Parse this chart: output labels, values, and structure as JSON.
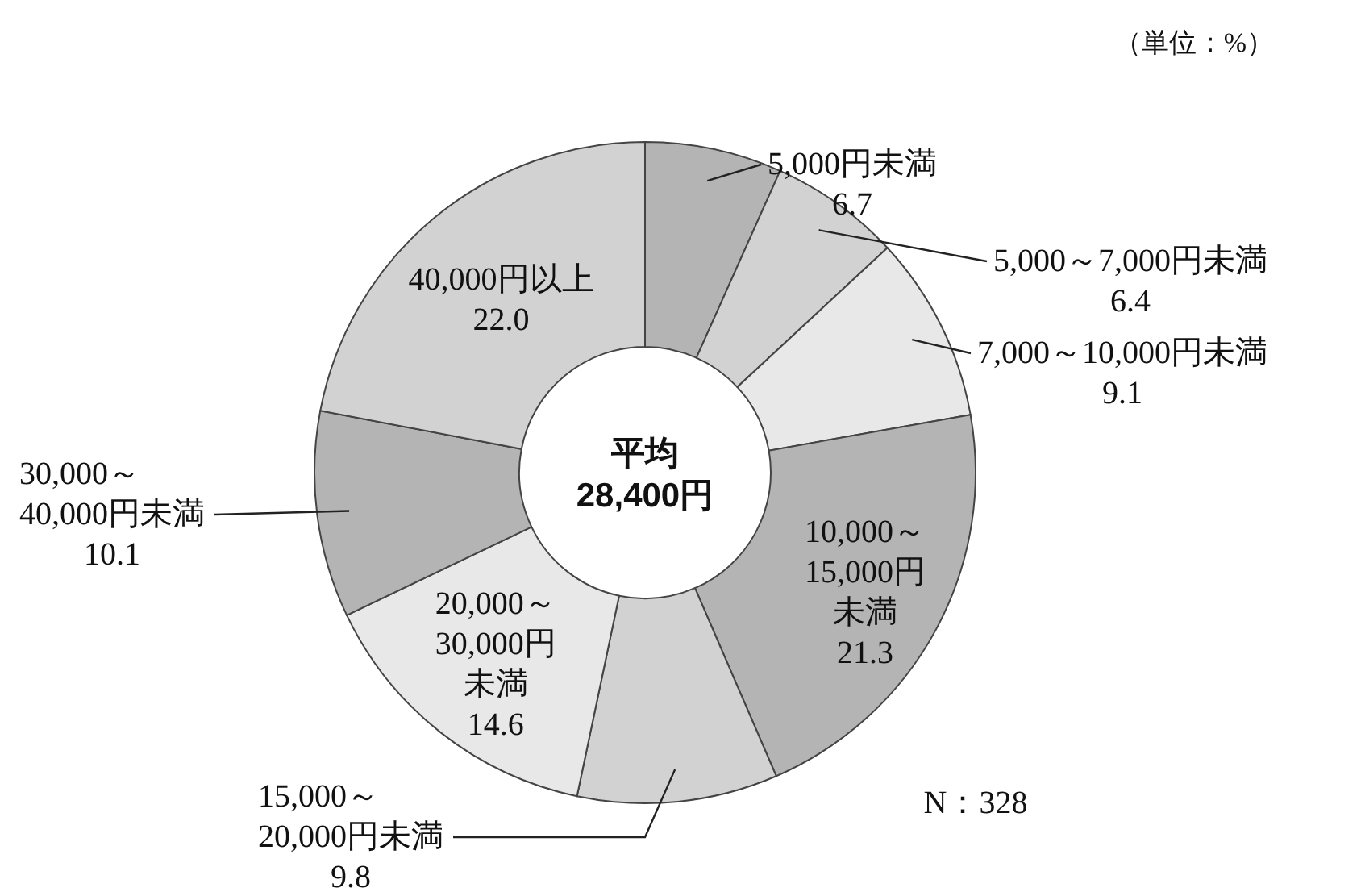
{
  "chart_data": {
    "type": "donut",
    "categories": [
      "5,000円未満",
      "5,000～7,000円未満",
      "7,000～10,000円未満",
      "10,000～15,000円未満",
      "15,000～20,000円未満",
      "20,000～30,000円未満",
      "30,000～40,000円未満",
      "40,000円以上"
    ],
    "values": [
      6.7,
      6.4,
      9.1,
      21.3,
      9.8,
      14.6,
      10.1,
      22.0
    ],
    "value_labels": [
      "6.7",
      "6.4",
      "9.1",
      "21.3",
      "9.8",
      "14.6",
      "10.1",
      "22.0"
    ],
    "colors": [
      "#b4b4b4",
      "#d2d2d2",
      "#e8e8e8",
      "#b4b4b4",
      "#d2d2d2",
      "#e8e8e8",
      "#b4b4b4",
      "#d2d2d2"
    ],
    "annotations": [
      "平均\n28,400円",
      "（単位：%）",
      "N：328"
    ]
  }
}
